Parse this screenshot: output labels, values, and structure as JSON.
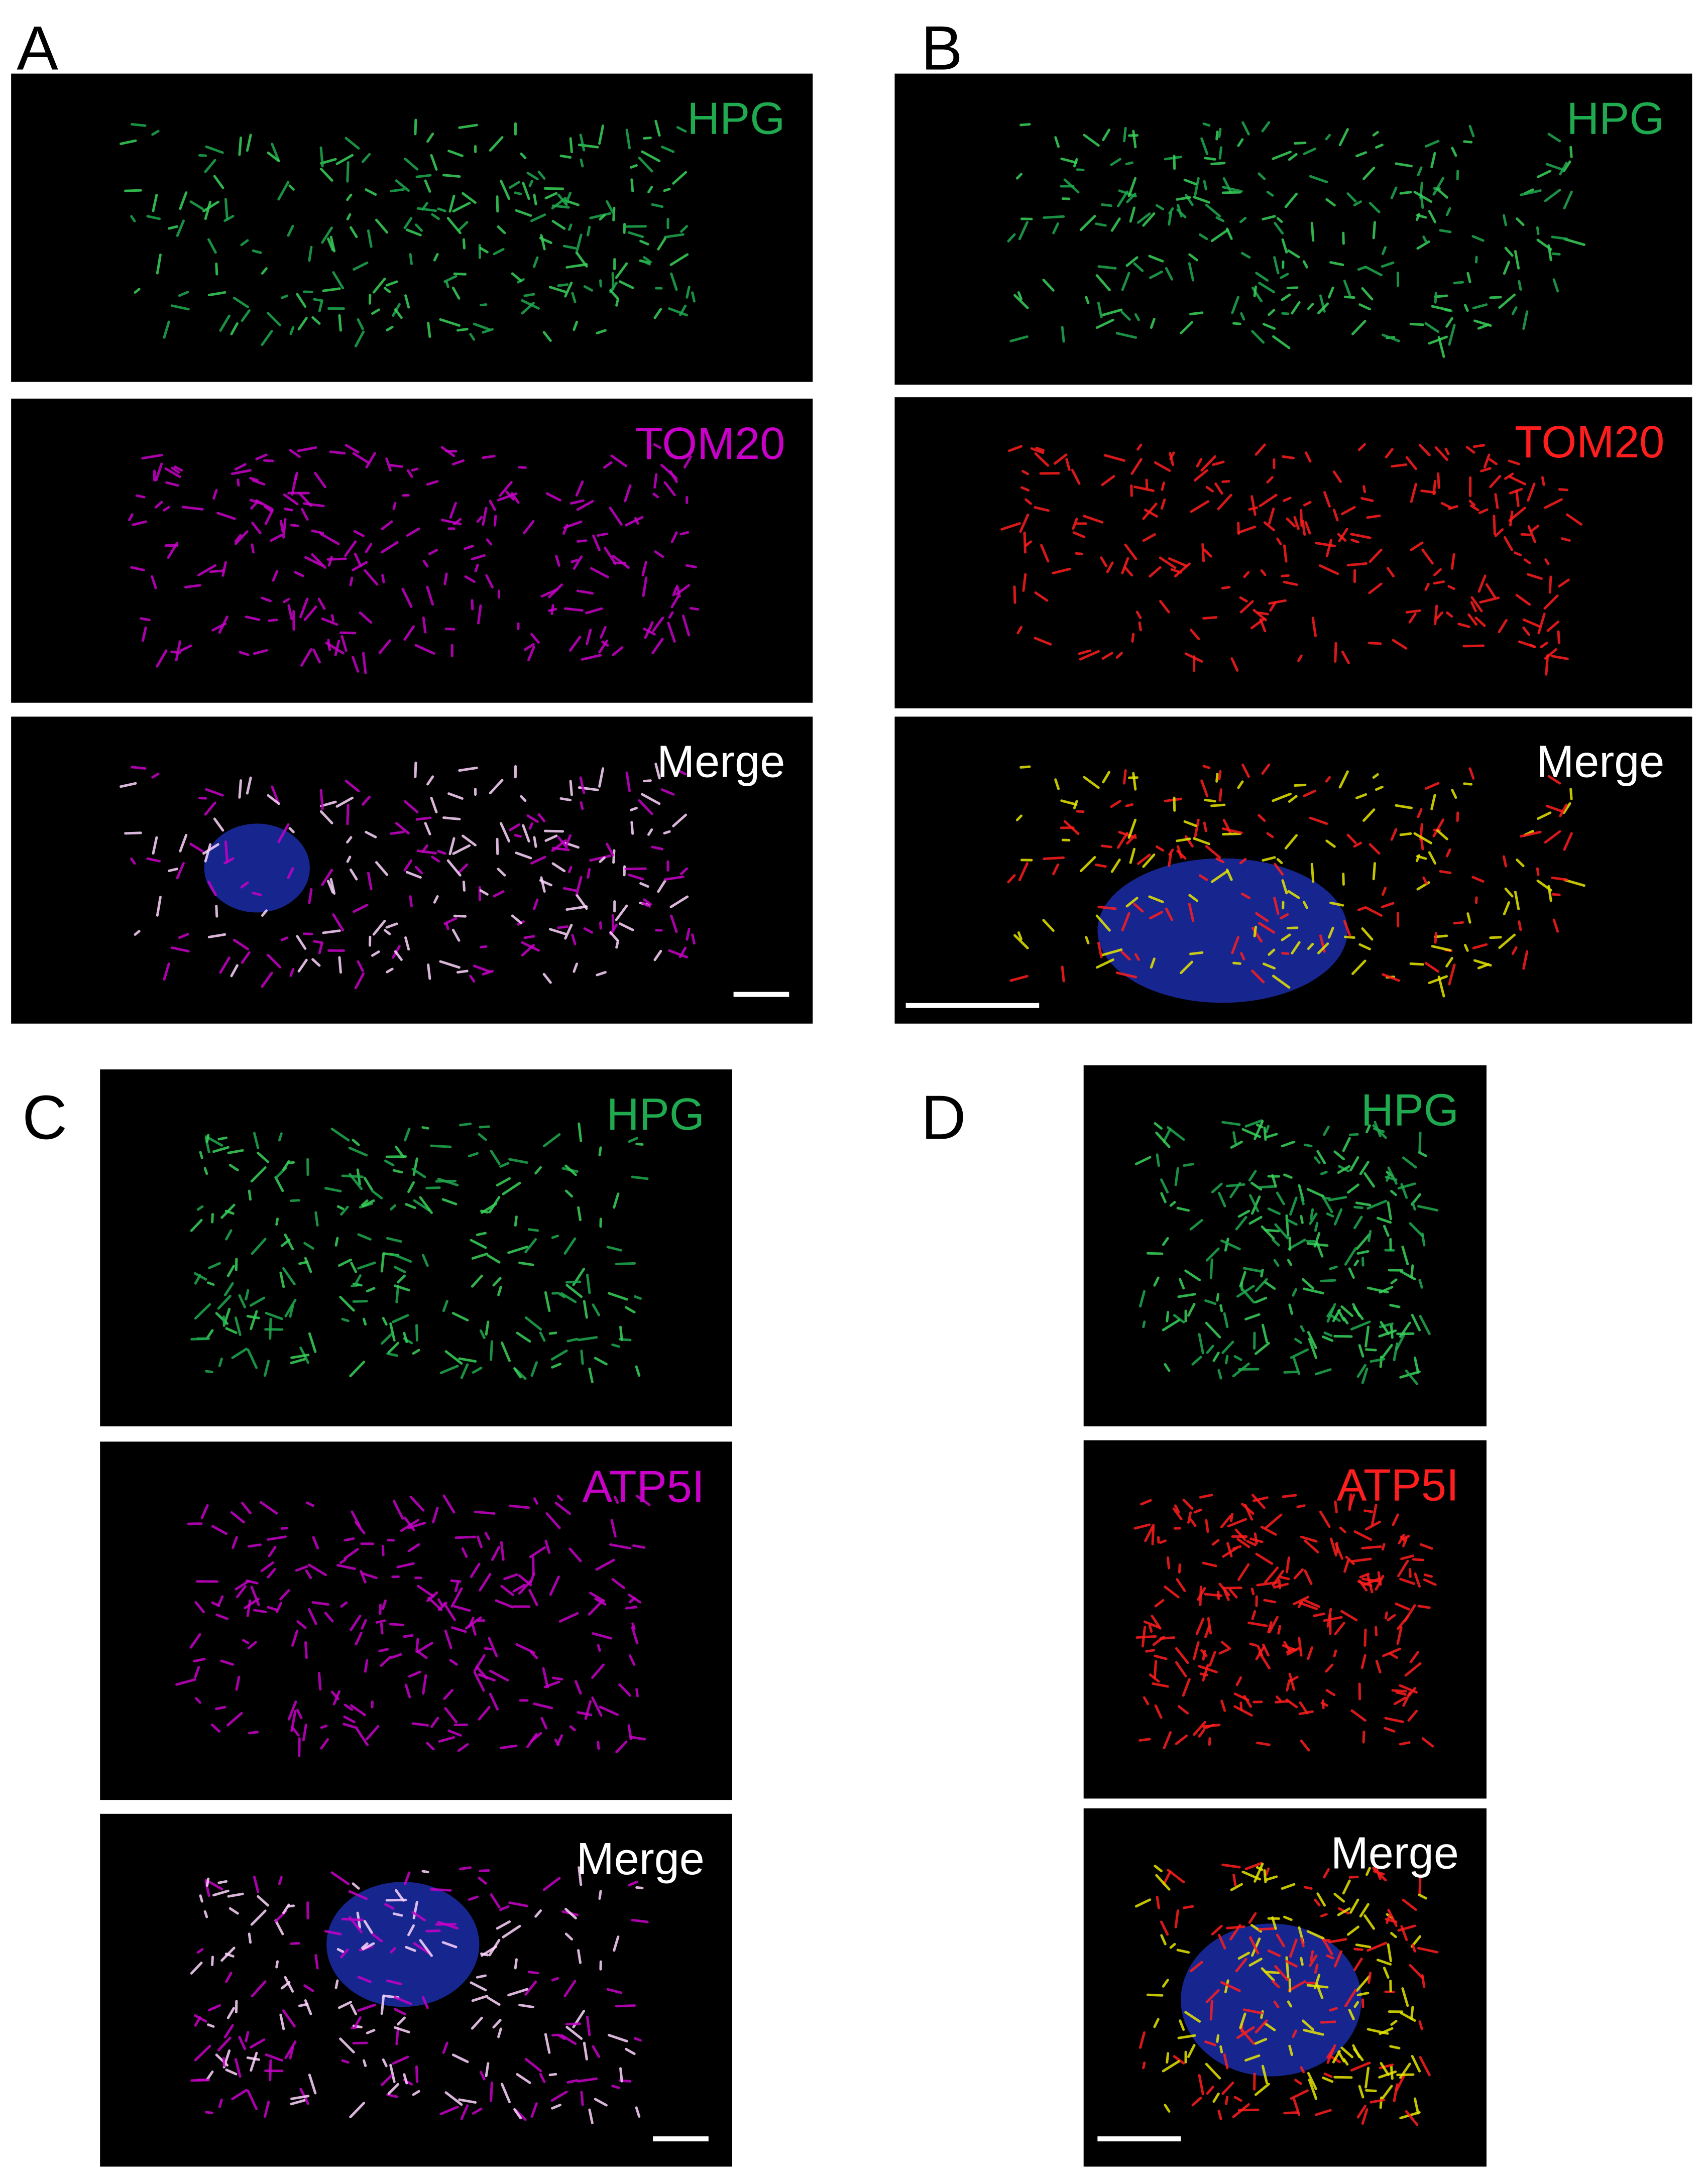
{
  "panels": [
    {
      "letter": "A",
      "images": [
        {
          "label": "HPG",
          "color": "#1faa4f"
        },
        {
          "label": "TOM20",
          "color": "#c800c8"
        },
        {
          "label": "Merge",
          "color": "#ffffff"
        }
      ]
    },
    {
      "letter": "B",
      "images": [
        {
          "label": "HPG",
          "color": "#1faa4f"
        },
        {
          "label": "TOM20",
          "color": "#ff1e1e"
        },
        {
          "label": "Merge",
          "color": "#ffffff"
        }
      ]
    },
    {
      "letter": "C",
      "images": [
        {
          "label": "HPG",
          "color": "#1faa4f"
        },
        {
          "label": "ATP5I",
          "color": "#c800c8"
        },
        {
          "label": "Merge",
          "color": "#ffffff"
        }
      ]
    },
    {
      "letter": "D",
      "images": [
        {
          "label": "HPG",
          "color": "#1faa4f"
        },
        {
          "label": "ATP5I",
          "color": "#ff1e1e"
        },
        {
          "label": "Merge",
          "color": "#ffffff"
        }
      ]
    }
  ]
}
